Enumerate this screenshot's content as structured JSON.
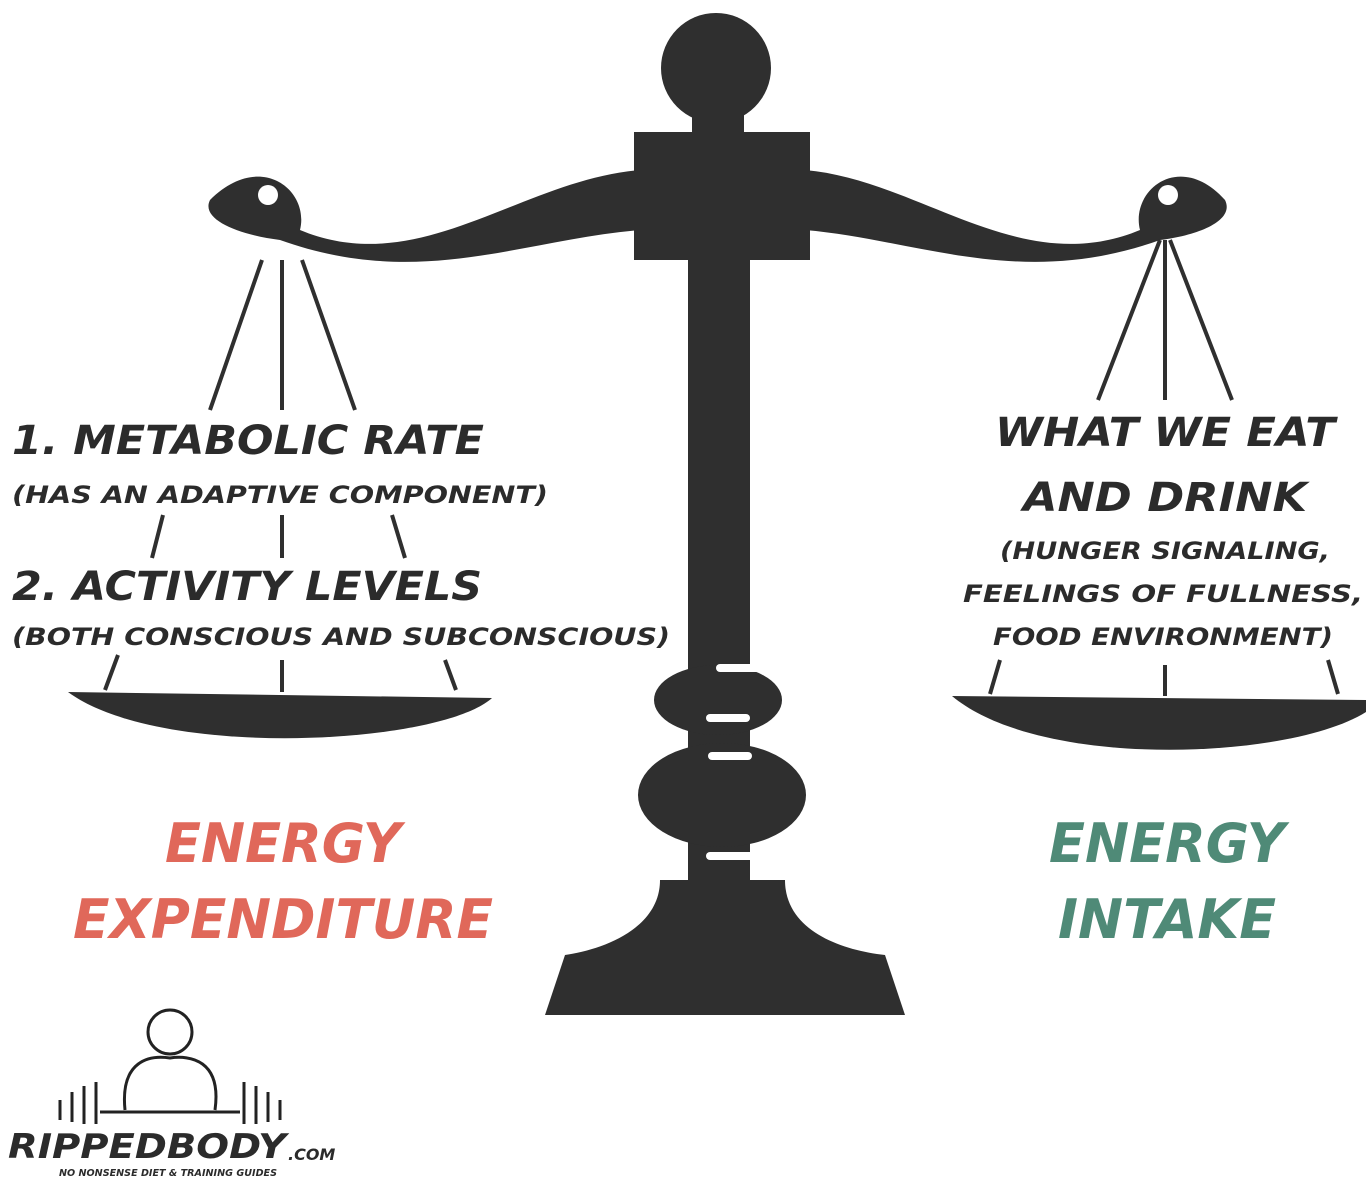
{
  "left": {
    "lines": [
      "1. METABOLIC RATE",
      "(HAS AN ADAPTIVE COMPONENT)",
      "2. ACTIVITY LEVELS",
      "(BOTH CONSCIOUS AND SUBCONSCIOUS)"
    ],
    "label": [
      "ENERGY",
      "EXPENDITURE"
    ]
  },
  "right": {
    "lines": [
      "WHAT WE EAT",
      "AND DRINK",
      "(HUNGER SIGNALING,",
      "FEELINGS OF FULLNESS,",
      "FOOD ENVIRONMENT)"
    ],
    "label": [
      "ENERGY",
      "INTAKE"
    ]
  },
  "logo": {
    "name": "RIPPEDBODY",
    "suffix": ".COM",
    "tagline": "NO NONSENSE DIET & TRAINING GUIDES"
  }
}
